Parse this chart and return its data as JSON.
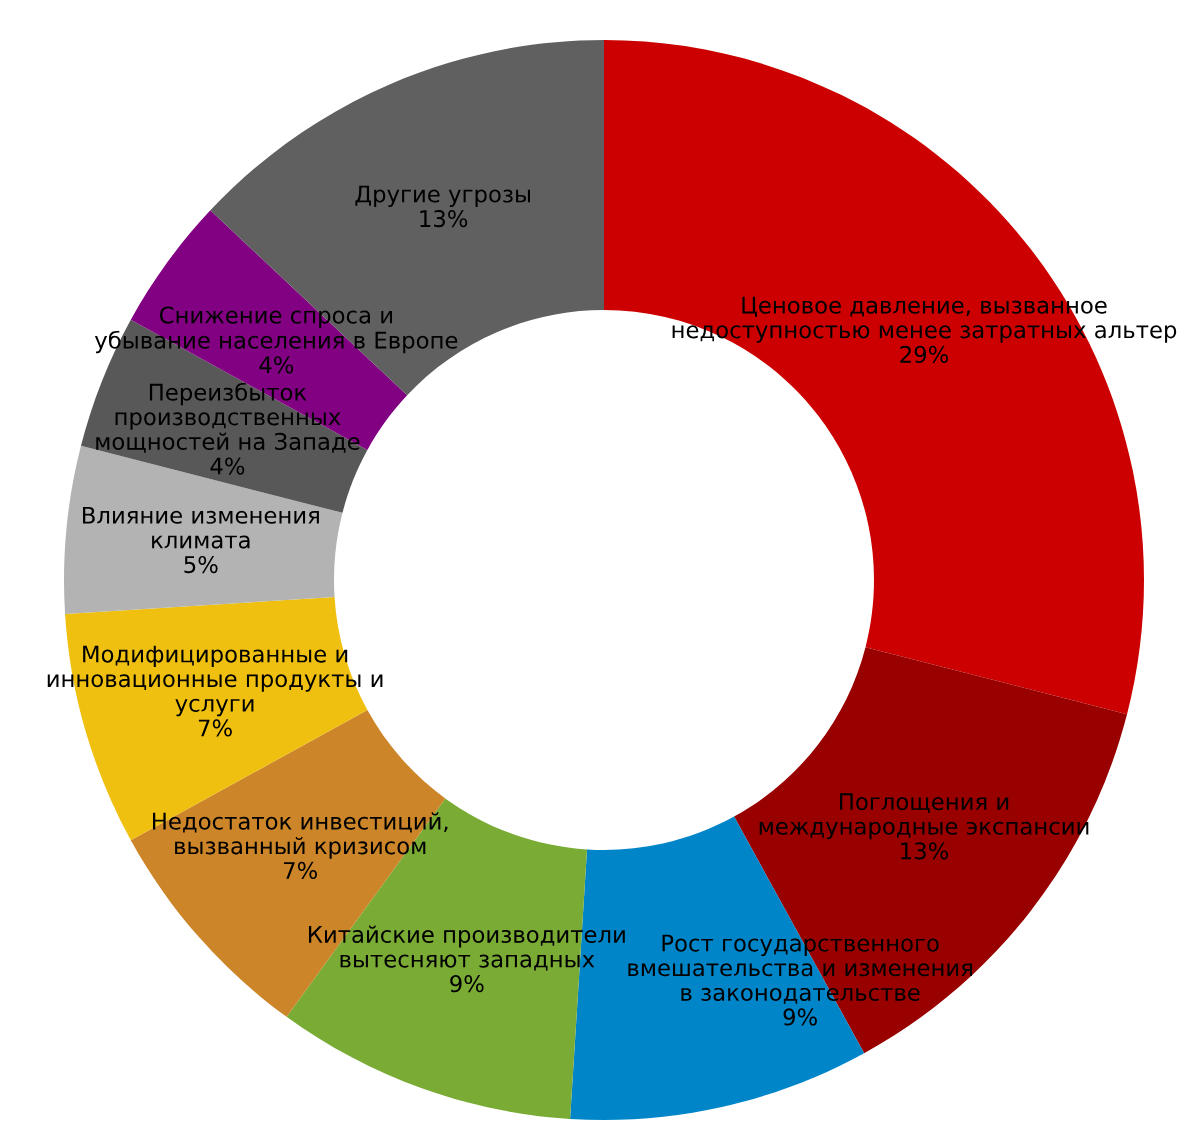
{
  "chart_data": {
    "type": "donut",
    "categories": [
      "Ценовое давление, вызванное\nнедоступностью менее затратных альтер",
      "Поглощения и\nмеждународные экспансии",
      "Рост государственного\nвмешательства и изменения\nв законодательстве",
      "Китайские производители\nвытесняют западных",
      "Недостаток инвестиций,\nвызванный кризисом",
      "Модифицированные и\nинновационные продукты и\nуслуги",
      "Влияние изменения\nклимата",
      "Переизбыток\nпроизводственных\nмощностей на Западе",
      "Снижение спроса и\nубывание населения в Европе",
      "Другие угрозы"
    ],
    "values": [
      29,
      13,
      9,
      9,
      7,
      7,
      5,
      4,
      4,
      13
    ],
    "value_labels": [
      "29%",
      "13%",
      "9%",
      "9%",
      "7%",
      "7%",
      "5%",
      "4%",
      "4%",
      "13%"
    ],
    "colors": [
      "#cc0000",
      "#990000",
      "#0085c8",
      "#7aab35",
      "#cc8529",
      "#f0c010",
      "#b3b3b3",
      "#585858",
      "#820082",
      "#606060"
    ]
  }
}
